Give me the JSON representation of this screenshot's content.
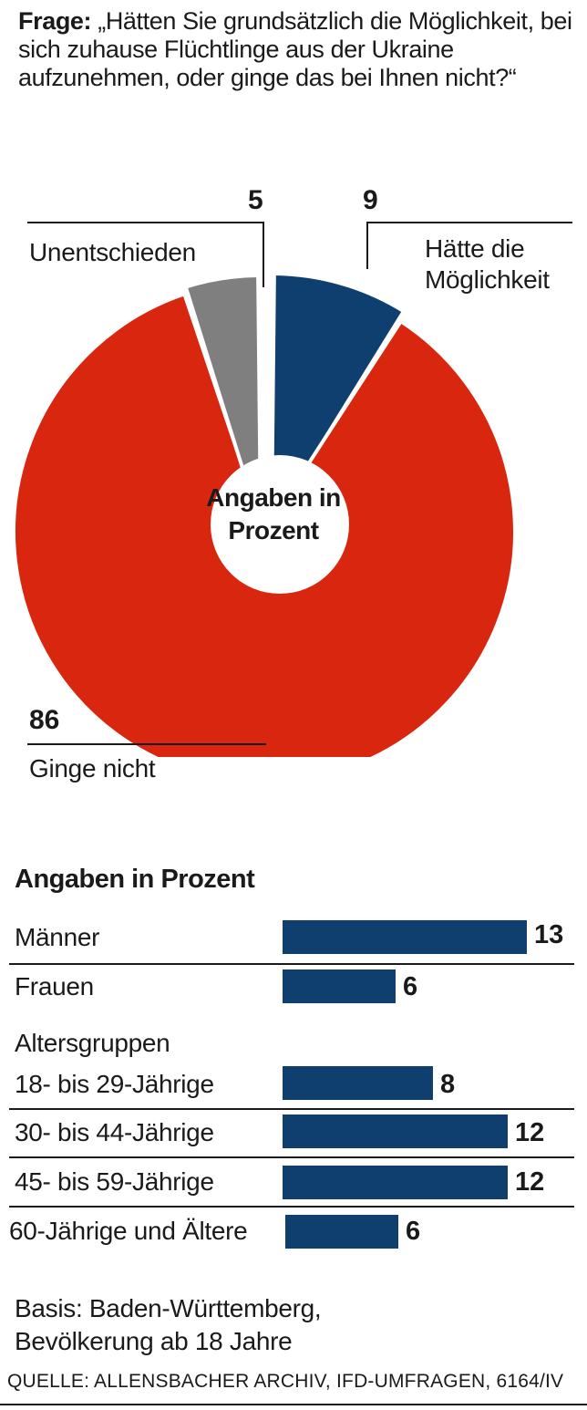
{
  "question": {
    "prefix": "Frage:",
    "text": "„Hätten Sie grundsätzlich die Möglichkeit, bei sich zuhause Flüchtlinge aus der Ukraine aufzunehmen, oder ginge das bei Ihnen nicht?“"
  },
  "chart_data": [
    {
      "type": "pie",
      "center_label": "Angaben in Prozent",
      "slices": [
        {
          "label": "Hätte die Möglichkeit",
          "value": 9,
          "color": "#0e3f6e"
        },
        {
          "label": "Ginge nicht",
          "value": 86,
          "color": "#d9260e"
        },
        {
          "label": "Unentschieden",
          "value": 5,
          "color": "#7f7f7f"
        }
      ]
    },
    {
      "type": "bar",
      "title": "Angaben in Prozent",
      "color": "#0e3f6e",
      "group_header": "Altersgruppen",
      "categories": [
        "Männer",
        "Frauen",
        "18- bis 29-Jährige",
        "30- bis 44-Jährige",
        "45- bis 59-Jährige",
        "60-Jährige und Ältere"
      ],
      "values": [
        13,
        6,
        8,
        12,
        12,
        6
      ]
    }
  ],
  "footer": {
    "basis_line1": "Basis: Baden-Württemberg,",
    "basis_line2": "Bevölkerung ab 18 Jahre",
    "source": "QUELLE: ALLENSBACHER ARCHIV, IFD-UMFRAGEN, 6164/IV"
  }
}
